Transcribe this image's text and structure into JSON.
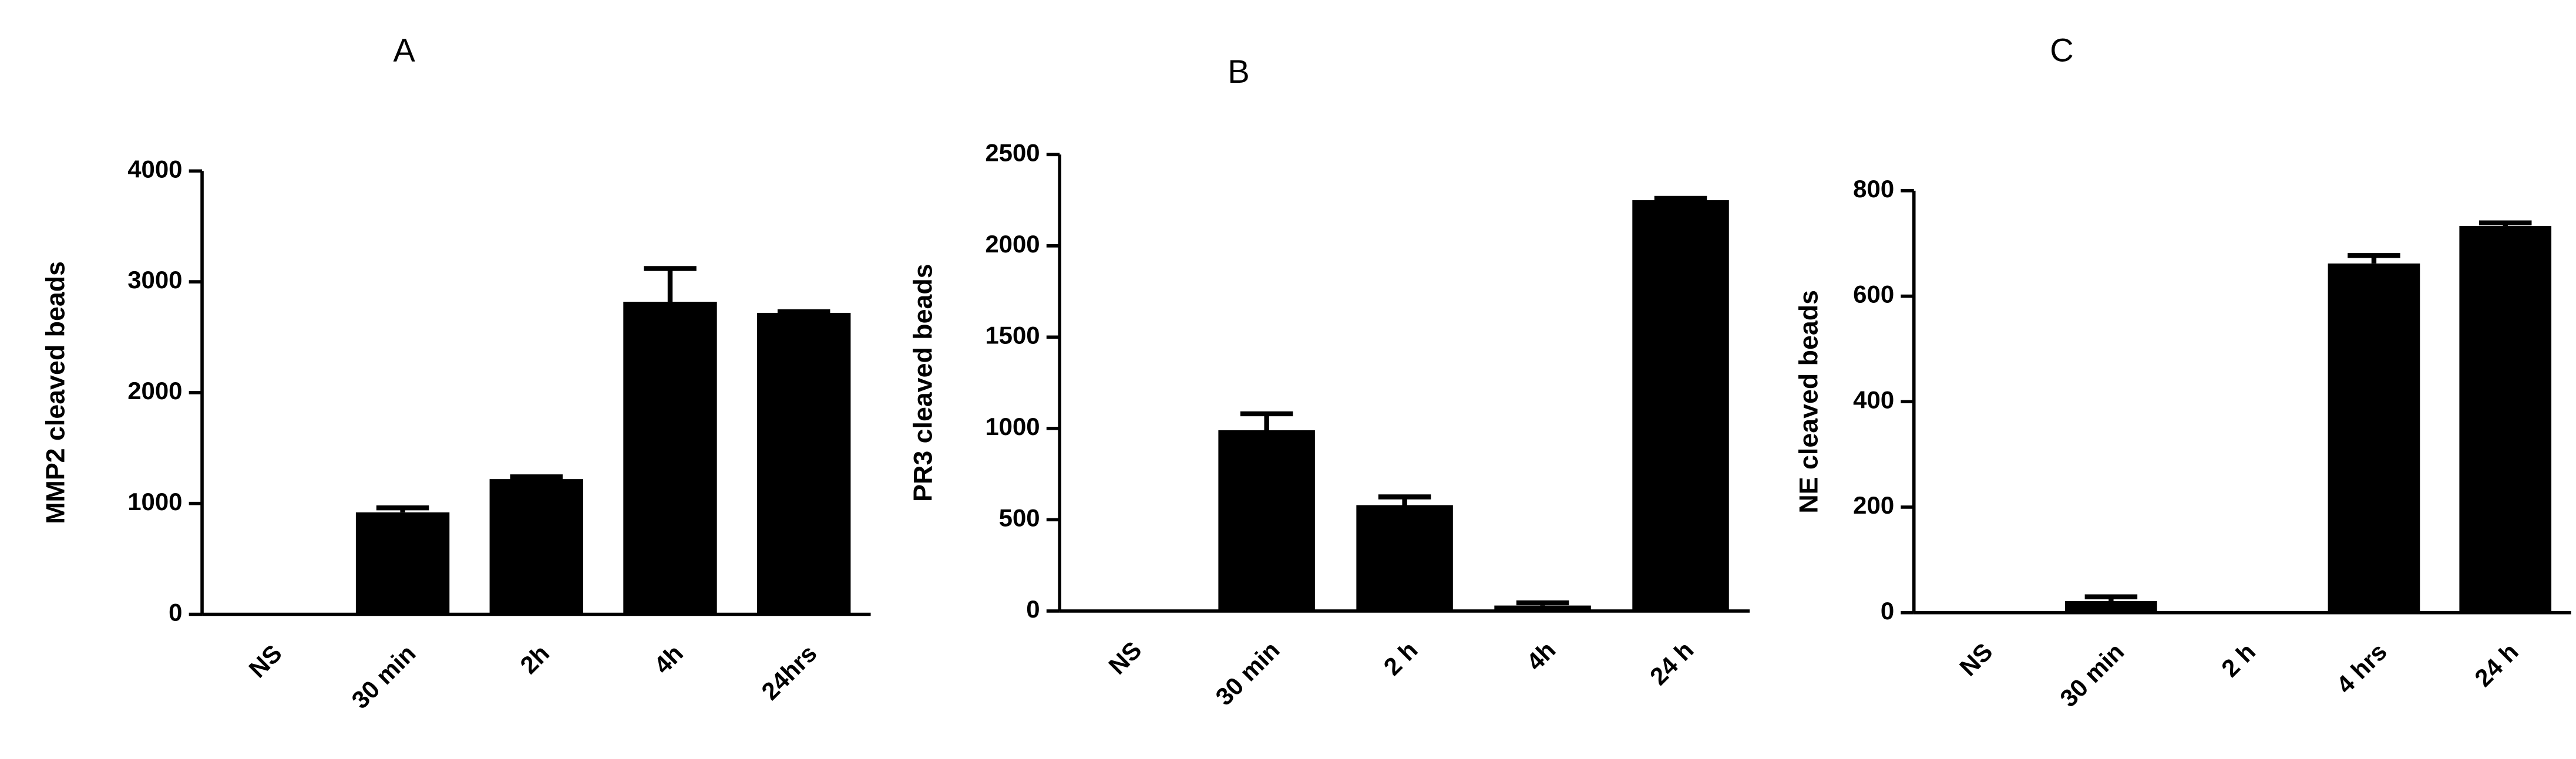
{
  "chart_data": [
    {
      "type": "bar",
      "title": "A",
      "y_label": "MMP2 cleaved beads",
      "categories": [
        "NS",
        "30 min",
        "2h",
        "4h",
        "24hrs"
      ],
      "values": [
        0,
        920,
        1220,
        2820,
        2720
      ],
      "errors": [
        0,
        40,
        20,
        300,
        10
      ],
      "color": "#000000",
      "ylim": [
        0,
        4000
      ],
      "yticks": [
        0,
        1000,
        2000,
        3000,
        4000
      ]
    },
    {
      "type": "bar",
      "title": "B",
      "y_label": "PR3 cleaved beads",
      "categories": [
        "NS",
        "30 min",
        "2 h",
        "4h",
        "24 h"
      ],
      "values": [
        0,
        990,
        580,
        30,
        2250
      ],
      "errors": [
        0,
        90,
        45,
        15,
        10
      ],
      "color": "#000000",
      "ylim": [
        0,
        2500
      ],
      "yticks": [
        0,
        500,
        1000,
        1500,
        2000,
        2500
      ]
    },
    {
      "type": "bar",
      "title": "C",
      "y_label": "NE cleaved beads",
      "categories": [
        "NS",
        "30 min",
        "2 h",
        "4 hrs",
        "24 h"
      ],
      "values": [
        0,
        22,
        0,
        662,
        733
      ],
      "errors": [
        0,
        8,
        0,
        15,
        6
      ],
      "color": "#000000",
      "ylim": [
        0,
        800
      ],
      "yticks": [
        0,
        200,
        400,
        600,
        800
      ]
    }
  ]
}
